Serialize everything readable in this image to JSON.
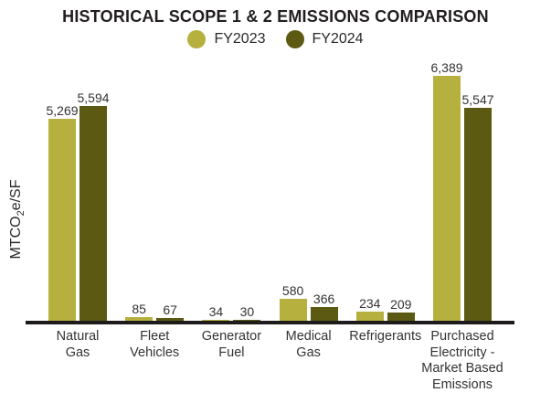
{
  "title": "HISTORICAL SCOPE 1 & 2 EMISSIONS COMPARISON",
  "y_axis_label": {
    "prefix": "MTCO",
    "subscript": "2",
    "suffix": "e/SF"
  },
  "colors": {
    "fy2023_bar": "#b6b03e",
    "fy2024_bar": "#5c5a12",
    "axis_line": "#1e1b1c",
    "title_text": "#221e1f",
    "label_text": "#363233"
  },
  "chart_data": {
    "type": "bar",
    "title": "HISTORICAL SCOPE 1 & 2 EMISSIONS COMPARISON",
    "categories": [
      "Natural Gas",
      "Fleet Vehicles",
      "Generator Fuel",
      "Medical Gas",
      "Refrigerants",
      "Purchased Electricity - Market Based Emissions"
    ],
    "category_lines": [
      [
        "Natural",
        "Gas"
      ],
      [
        "Fleet",
        "Vehicles"
      ],
      [
        "Generator",
        "Fuel"
      ],
      [
        "Medical",
        "Gas"
      ],
      [
        "Refrigerants"
      ],
      [
        "Purchased",
        "Electricity -",
        "Market Based",
        "Emissions"
      ]
    ],
    "series": [
      {
        "name": "FY2023",
        "color": "#b6b03e",
        "values": [
          5269,
          85,
          34,
          580,
          234,
          6389
        ],
        "labels": [
          "5,269",
          "85",
          "34",
          "580",
          "234",
          "6,389"
        ]
      },
      {
        "name": "FY2024",
        "color": "#5c5a12",
        "values": [
          5594,
          67,
          30,
          366,
          209,
          5547
        ],
        "labels": [
          "5,594",
          "67",
          "30",
          "366",
          "209",
          "5,547"
        ]
      }
    ],
    "xlabel": "",
    "ylabel": "MTCO2e/SF",
    "ylim": [
      0,
      6800
    ],
    "grid": false,
    "y_axis_ticks": "none",
    "legend_position": "top",
    "bar_value_labels": "above bars"
  }
}
